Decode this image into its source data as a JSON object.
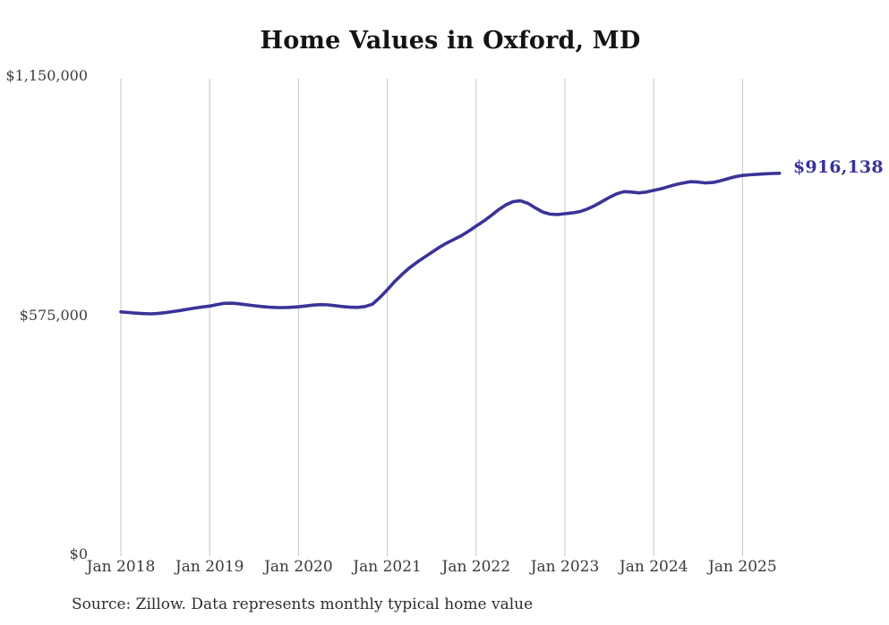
{
  "chart_data": {
    "type": "line",
    "title": "Home Values in Oxford, MD",
    "source": "Source: Zillow. Data represents monthly typical home value",
    "series_name": "Typical home value (monthly)",
    "frequency": "monthly",
    "start_month": "Jan 2018",
    "end_month": "Jun 2025",
    "x_tick_labels": [
      "Jan 2018",
      "Jan 2019",
      "Jan 2020",
      "Jan 2021",
      "Jan 2022",
      "Jan 2023",
      "Jan 2024",
      "Jan 2025"
    ],
    "y_ticks": [
      {
        "label": "$1,150,000",
        "value": 1150000
      },
      {
        "label": "$575,000",
        "value": 575000
      },
      {
        "label": "$0",
        "value": 0
      }
    ],
    "ylim": [
      0,
      1150000
    ],
    "grid": "vertical-year-gridlines",
    "legend": "none",
    "line_color": "#3a3397",
    "gridline_color": "#c4c4c4",
    "end_label": "$916,138",
    "end_value": 916138,
    "values": [
      583000,
      581500,
      580000,
      578800,
      578200,
      579000,
      581000,
      583500,
      586200,
      589200,
      592300,
      594800,
      597000,
      600500,
      603500,
      603800,
      602200,
      600000,
      597800,
      595800,
      594300,
      593400,
      593200,
      594000,
      595200,
      597200,
      599300,
      600400,
      599800,
      597800,
      595700,
      594200,
      593600,
      595800,
      601500,
      617500,
      636000,
      656000,
      673000,
      689000,
      702000,
      714000,
      726000,
      738000,
      748000,
      757000,
      766000,
      777000,
      789000,
      801000,
      814000,
      828000,
      840000,
      848000,
      850000,
      844000,
      833000,
      823000,
      818000,
      817000,
      819000,
      821000,
      824000,
      830000,
      838000,
      848000,
      858000,
      867000,
      872000,
      871000,
      869000,
      871000,
      875000,
      879000,
      884000,
      889000,
      893000,
      896000,
      895000,
      893000,
      894000,
      898000,
      903000,
      908000,
      911000,
      912500,
      913800,
      914800,
      915600,
      916138
    ]
  }
}
